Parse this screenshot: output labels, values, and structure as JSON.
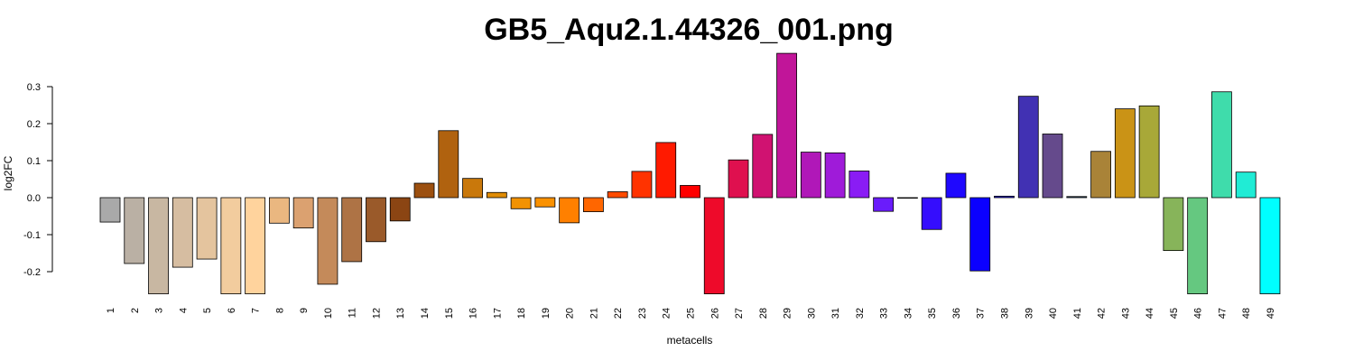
{
  "chart_data": {
    "type": "bar",
    "title": "GB5_Aqu2.1.44326_001.png",
    "xlabel": "metacells",
    "ylabel": "log2FC",
    "ylim": [
      -0.26,
      0.39
    ],
    "yticks": [
      "-0.2",
      "-0.1",
      "0.0",
      "0.1",
      "0.2",
      "0.3"
    ],
    "categories": [
      "1",
      "2",
      "3",
      "4",
      "5",
      "6",
      "7",
      "8",
      "9",
      "10",
      "11",
      "12",
      "13",
      "14",
      "15",
      "16",
      "17",
      "18",
      "19",
      "20",
      "21",
      "22",
      "23",
      "24",
      "25",
      "26",
      "27",
      "28",
      "29",
      "30",
      "31",
      "32",
      "33",
      "34",
      "35",
      "36",
      "37",
      "38",
      "39",
      "40",
      "41",
      "42",
      "43",
      "44",
      "45",
      "46",
      "47",
      "48",
      "49"
    ],
    "values": [
      -0.066,
      -0.178,
      -0.26,
      -0.188,
      -0.166,
      -0.26,
      -0.26,
      -0.069,
      -0.082,
      -0.234,
      -0.173,
      -0.119,
      -0.063,
      0.039,
      0.181,
      0.052,
      0.014,
      -0.03,
      -0.025,
      -0.068,
      -0.038,
      0.016,
      0.071,
      0.149,
      0.033,
      -0.26,
      0.102,
      0.171,
      0.39,
      0.123,
      0.121,
      0.072,
      -0.037,
      0.0,
      -0.086,
      0.066,
      -0.198,
      0.004,
      0.274,
      0.172,
      0.003,
      0.125,
      0.24,
      0.248,
      -0.143,
      -0.26,
      0.286,
      0.069,
      -0.26
    ],
    "colors": [
      "#a9a9a9",
      "#bab0a4",
      "#c8b7a2",
      "#d6bda1",
      "#e4c49e",
      "#f2cc9e",
      "#ffd39d",
      "#eab780",
      "#dba170",
      "#c48a5a",
      "#ae7345",
      "#9a5a2a",
      "#8b4513",
      "#9c5010",
      "#b0620f",
      "#c9780b",
      "#e08c05",
      "#f29202",
      "#fa9100",
      "#ff8000",
      "#ff6600",
      "#ff4c00",
      "#ff3300",
      "#ff1a00",
      "#ff0000",
      "#ee0a2a",
      "#df104f",
      "#d01271",
      "#c11599",
      "#b018b8",
      "#9f1bd9",
      "#8a1cf4",
      "#6a1cfb",
      "#4b14fc",
      "#350dfd",
      "#1f08fe",
      "#0b00ff",
      "#2319d8",
      "#4131b3",
      "#654a8c",
      "#2e4d67",
      "#a98338",
      "#ca9316",
      "#a8a838",
      "#87b45a",
      "#65c880",
      "#3fdcab",
      "#20ecd5",
      "#00ffff"
    ],
    "grid": false,
    "legend": "none"
  }
}
